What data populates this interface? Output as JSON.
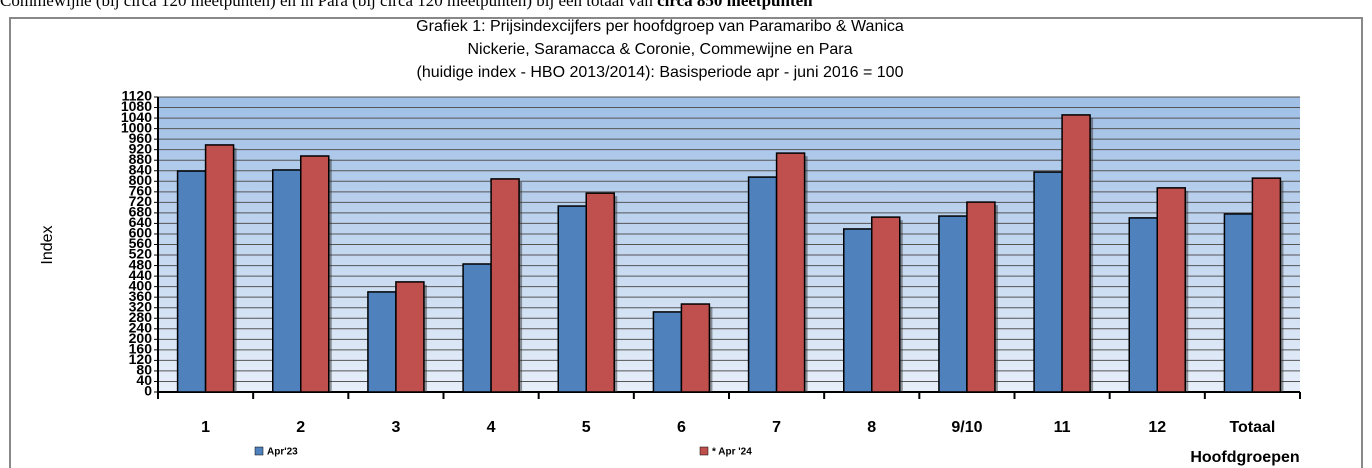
{
  "page_text": {
    "line": "Commewijne (bij circa 120 meetpunten) en in Para (bij circa 120 meetpunten) bij een totaal van ",
    "bold": "circa 850 meetpunten"
  },
  "chart_data": {
    "type": "bar",
    "title": [
      "Grafiek 1: Prijsindexcijfers per hoofdgroep van Paramaribo & Wanica",
      "Nickerie, Saramacca & Coronie, Commewijne en Para",
      "(huidige index - HBO 2013/2014): Basisperiode apr - juni 2016 = 100"
    ],
    "y_label": "Index",
    "x_label": "Hoofdgroepen",
    "categories": [
      "1",
      "2",
      "3",
      "4",
      "5",
      "6",
      "7",
      "8",
      "9/10",
      "11",
      "12",
      "Totaal"
    ],
    "series": [
      {
        "name": "Apr'23",
        "color": "#4f81bd",
        "values": [
          839,
          843,
          380,
          486,
          706,
          304,
          816,
          619,
          668,
          835,
          661,
          676
        ]
      },
      {
        "name": "* Apr '24",
        "color": "#c0504d",
        "values": [
          938,
          896,
          418,
          809,
          755,
          334,
          907,
          664,
          721,
          1052,
          775,
          812
        ]
      }
    ],
    "ylim": [
      0,
      1120
    ],
    "yticks": [
      0,
      40,
      80,
      120,
      160,
      200,
      240,
      280,
      320,
      360,
      400,
      440,
      480,
      520,
      560,
      600,
      640,
      680,
      720,
      760,
      800,
      840,
      880,
      920,
      960,
      1000,
      1040,
      1080,
      1120
    ],
    "grid": true,
    "legend": "bottom"
  }
}
